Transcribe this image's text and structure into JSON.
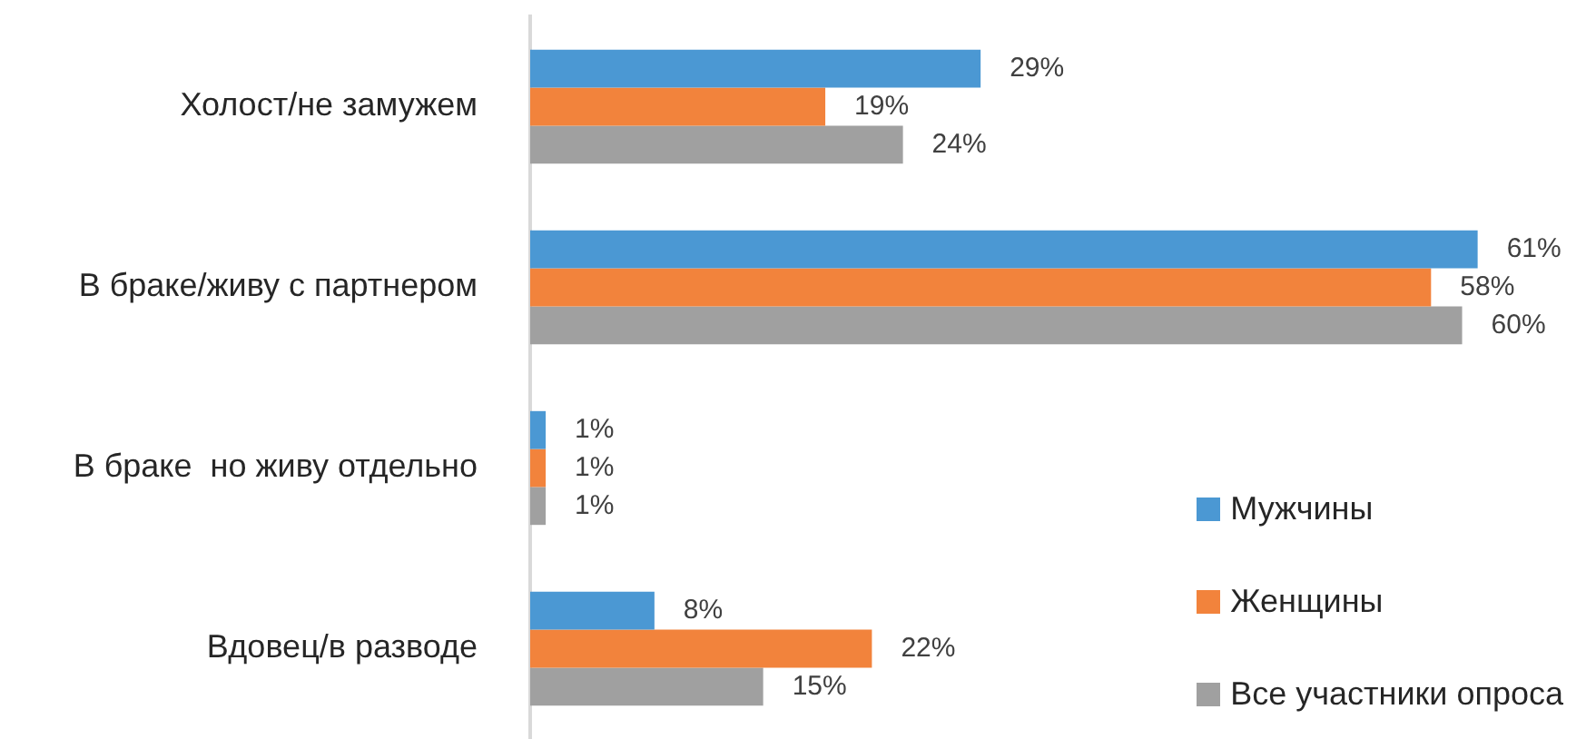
{
  "chart_data": {
    "type": "bar",
    "orientation": "horizontal",
    "categories": [
      "Холост/не замужем",
      "В браке/живу с партнером",
      "В браке  но живу отдельно",
      "Вдовец/в разводе"
    ],
    "series": [
      {
        "name": "Мужчины",
        "color": "#4b98d3",
        "values": [
          29,
          61,
          1,
          8
        ],
        "value_labels": [
          "29%",
          "61%",
          "1%",
          "8%"
        ]
      },
      {
        "name": "Женщины",
        "color": "#f2833c",
        "values": [
          19,
          58,
          1,
          22
        ],
        "value_labels": [
          "19%",
          "58%",
          "1%",
          "22%"
        ]
      },
      {
        "name": "Все участники опроса",
        "color": "#a0a0a0",
        "values": [
          24,
          60,
          1,
          15
        ],
        "value_labels": [
          "24%",
          "60%",
          "1%",
          "15%"
        ]
      }
    ],
    "legend": "bottom right"
  }
}
